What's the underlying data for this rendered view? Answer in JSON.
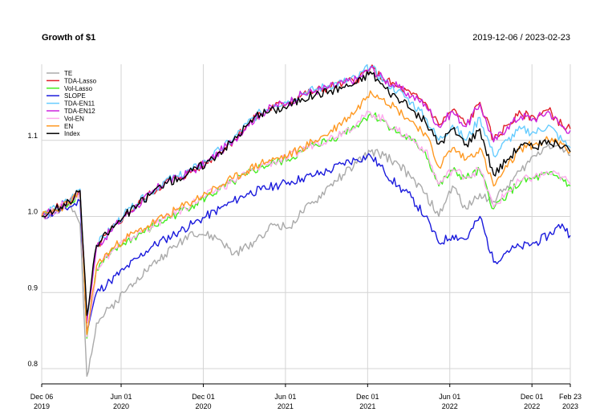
{
  "header": {
    "title": "Growth of $1",
    "date_range": "2019-12-06 / 2023-02-23"
  },
  "chart_data": {
    "type": "line",
    "title": "Growth of $1",
    "subtitle": "2019-12-06 / 2023-02-23",
    "xlabel": "",
    "ylabel": "",
    "ylim": [
      0.78,
      1.2
    ],
    "grid": true,
    "legend_position": "top-left",
    "y_ticks": [
      {
        "value": 0.8,
        "label": "0.8"
      },
      {
        "value": 0.9,
        "label": "0.9"
      },
      {
        "value": 1.0,
        "label": "1.0"
      },
      {
        "value": 1.1,
        "label": "1.1"
      }
    ],
    "x_ticks": [
      {
        "t": 0,
        "line1": "Dec 06",
        "line2": "2019"
      },
      {
        "t": 5.8,
        "line1": "Jun 01",
        "line2": "2020"
      },
      {
        "t": 11.8,
        "line1": "Dec 01",
        "line2": "2020"
      },
      {
        "t": 17.8,
        "line1": "Jun 01",
        "line2": "2021"
      },
      {
        "t": 23.8,
        "line1": "Dec 01",
        "line2": "2021"
      },
      {
        "t": 29.8,
        "line1": "Jun 01",
        "line2": "2022"
      },
      {
        "t": 35.8,
        "line1": "Dec 01",
        "line2": "2022"
      },
      {
        "t": 38.6,
        "line1": "Feb 23",
        "line2": "2023"
      }
    ],
    "x_units": "months since 2019-12-06",
    "x": [
      0,
      1,
      2,
      2.8,
      3.3,
      4,
      5,
      6,
      7,
      8,
      9,
      10,
      11,
      12,
      13,
      14,
      15,
      16,
      17,
      18,
      19,
      20,
      21,
      22,
      23,
      24,
      25,
      26,
      27,
      28,
      29,
      30,
      31,
      32,
      33,
      34,
      35,
      36,
      37,
      38,
      38.6
    ],
    "series": [
      {
        "name": "TE",
        "color": "#aaaaaa",
        "values": [
          1.0,
          1.005,
          1.015,
          0.99,
          0.79,
          0.86,
          0.88,
          0.9,
          0.92,
          0.935,
          0.95,
          0.965,
          0.98,
          0.975,
          0.97,
          0.95,
          0.96,
          0.975,
          0.99,
          0.985,
          1.005,
          1.02,
          1.04,
          1.055,
          1.07,
          1.085,
          1.08,
          1.07,
          1.05,
          1.03,
          1.0,
          1.04,
          1.01,
          1.03,
          1.02,
          1.04,
          1.06,
          1.08,
          1.095,
          1.09,
          1.08
        ]
      },
      {
        "name": "TDA-Lasso",
        "color": "#e0202a",
        "values": [
          1.0,
          1.01,
          1.02,
          1.035,
          0.86,
          0.96,
          0.98,
          1.0,
          1.015,
          1.03,
          1.045,
          1.05,
          1.06,
          1.07,
          1.085,
          1.1,
          1.12,
          1.135,
          1.145,
          1.15,
          1.16,
          1.165,
          1.17,
          1.175,
          1.18,
          1.195,
          1.18,
          1.17,
          1.16,
          1.15,
          1.12,
          1.14,
          1.12,
          1.15,
          1.1,
          1.12,
          1.135,
          1.13,
          1.14,
          1.12,
          1.115
        ]
      },
      {
        "name": "Vol-Lasso",
        "color": "#44ee22",
        "values": [
          1.0,
          1.008,
          1.018,
          1.032,
          0.84,
          0.93,
          0.95,
          0.965,
          0.975,
          0.985,
          0.995,
          1.005,
          1.015,
          1.025,
          1.035,
          1.045,
          1.055,
          1.065,
          1.07,
          1.075,
          1.085,
          1.095,
          1.1,
          1.11,
          1.12,
          1.135,
          1.125,
          1.11,
          1.1,
          1.085,
          1.04,
          1.06,
          1.05,
          1.06,
          1.01,
          1.03,
          1.045,
          1.05,
          1.055,
          1.05,
          1.04
        ]
      },
      {
        "name": "SLOPE",
        "color": "#1a1adc",
        "values": [
          1.0,
          1.005,
          1.012,
          1.02,
          0.85,
          0.9,
          0.915,
          0.93,
          0.945,
          0.96,
          0.97,
          0.98,
          0.99,
          1.0,
          1.01,
          1.02,
          1.03,
          1.035,
          1.04,
          1.045,
          1.05,
          1.055,
          1.06,
          1.07,
          1.075,
          1.08,
          1.06,
          1.04,
          1.025,
          1.0,
          0.965,
          0.975,
          0.97,
          1.0,
          0.94,
          0.955,
          0.96,
          0.965,
          0.975,
          0.99,
          0.975
        ]
      },
      {
        "name": "TDA-EN11",
        "color": "#66ccff",
        "values": [
          1.0,
          1.011,
          1.021,
          1.036,
          0.865,
          0.962,
          0.982,
          1.002,
          1.017,
          1.032,
          1.047,
          1.052,
          1.062,
          1.072,
          1.087,
          1.102,
          1.122,
          1.137,
          1.147,
          1.152,
          1.162,
          1.167,
          1.172,
          1.177,
          1.182,
          1.197,
          1.178,
          1.165,
          1.15,
          1.13,
          1.1,
          1.12,
          1.1,
          1.13,
          1.08,
          1.1,
          1.115,
          1.11,
          1.12,
          1.1,
          1.09
        ]
      },
      {
        "name": "TDA-EN12",
        "color": "#cc22dd",
        "values": [
          1.0,
          1.01,
          1.02,
          1.034,
          0.862,
          0.96,
          0.98,
          1.0,
          1.015,
          1.03,
          1.045,
          1.05,
          1.06,
          1.07,
          1.085,
          1.1,
          1.12,
          1.135,
          1.145,
          1.15,
          1.16,
          1.165,
          1.17,
          1.175,
          1.18,
          1.195,
          1.18,
          1.17,
          1.158,
          1.148,
          1.118,
          1.138,
          1.118,
          1.148,
          1.098,
          1.118,
          1.132,
          1.128,
          1.138,
          1.118,
          1.113
        ]
      },
      {
        "name": "Vol-EN",
        "color": "#ffaaee",
        "values": [
          1.0,
          1.008,
          1.018,
          1.032,
          0.842,
          0.932,
          0.952,
          0.967,
          0.977,
          0.987,
          0.997,
          1.007,
          1.017,
          1.027,
          1.037,
          1.047,
          1.057,
          1.067,
          1.072,
          1.077,
          1.087,
          1.097,
          1.102,
          1.112,
          1.122,
          1.137,
          1.127,
          1.112,
          1.102,
          1.087,
          1.042,
          1.062,
          1.052,
          1.062,
          1.012,
          1.032,
          1.047,
          1.052,
          1.057,
          1.052,
          1.042
        ]
      },
      {
        "name": "EN",
        "color": "#ff9922",
        "values": [
          1.0,
          1.008,
          1.018,
          1.032,
          0.845,
          0.935,
          0.955,
          0.97,
          0.98,
          0.99,
          1.0,
          1.01,
          1.02,
          1.03,
          1.04,
          1.05,
          1.06,
          1.07,
          1.075,
          1.08,
          1.09,
          1.1,
          1.11,
          1.125,
          1.14,
          1.165,
          1.155,
          1.14,
          1.125,
          1.11,
          1.065,
          1.09,
          1.075,
          1.09,
          1.04,
          1.065,
          1.09,
          1.095,
          1.1,
          1.095,
          1.085
        ]
      },
      {
        "name": "Index",
        "color": "#000000",
        "values": [
          1.0,
          1.01,
          1.02,
          1.034,
          0.87,
          0.962,
          0.982,
          1.0,
          1.015,
          1.03,
          1.045,
          1.05,
          1.06,
          1.07,
          1.085,
          1.1,
          1.12,
          1.135,
          1.14,
          1.145,
          1.155,
          1.16,
          1.165,
          1.17,
          1.175,
          1.19,
          1.17,
          1.155,
          1.14,
          1.125,
          1.095,
          1.115,
          1.095,
          1.115,
          1.055,
          1.075,
          1.095,
          1.09,
          1.1,
          1.09,
          1.085
        ]
      }
    ]
  }
}
